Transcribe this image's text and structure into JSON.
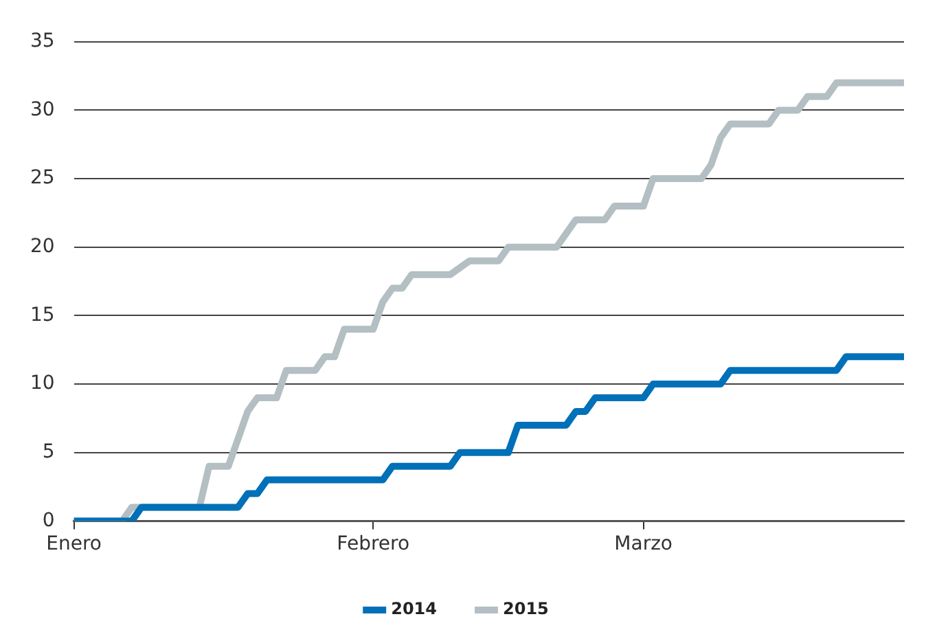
{
  "chart_data": {
    "type": "line",
    "xlim": [
      "--01-01",
      "--03-28"
    ],
    "xticks": [
      {
        "value": "--01-01",
        "label": "Enero"
      },
      {
        "value": "--02-01",
        "label": "Febrero"
      },
      {
        "value": "--03-01",
        "label": "Marzo"
      }
    ],
    "ylim": [
      0,
      35
    ],
    "yticks": [
      0,
      5,
      10,
      15,
      20,
      25,
      30,
      35
    ],
    "grid": "y",
    "legend": "bottom",
    "series": [
      {
        "name": "2014",
        "color": "#0070b8",
        "x": [
          "--01-01",
          "--01-07",
          "--01-08",
          "--01-18",
          "--01-19",
          "--01-20",
          "--01-21",
          "--02-02",
          "--02-03",
          "--02-09",
          "--02-10",
          "--02-15",
          "--02-16",
          "--02-21",
          "--02-22",
          "--02-23",
          "--02-24",
          "--03-01",
          "--03-02",
          "--03-09",
          "--03-10",
          "--03-21",
          "--03-22",
          "--03-28"
        ],
        "values": [
          0,
          0,
          1,
          1,
          2,
          2,
          3,
          3,
          4,
          4,
          5,
          5,
          7,
          7,
          8,
          8,
          9,
          9,
          10,
          10,
          11,
          11,
          12,
          12
        ]
      },
      {
        "name": "2015",
        "color": "#b3bfc2",
        "x": [
          "--01-01",
          "--01-06",
          "--01-07",
          "--01-14",
          "--01-15",
          "--01-17",
          "--01-18",
          "--01-19",
          "--01-20",
          "--01-22",
          "--01-23",
          "--01-26",
          "--01-27",
          "--01-28",
          "--01-29",
          "--02-01",
          "--02-02",
          "--02-03",
          "--02-04",
          "--02-05",
          "--02-09",
          "--02-11",
          "--02-14",
          "--02-15",
          "--02-20",
          "--02-22",
          "--02-25",
          "--02-26",
          "--03-01",
          "--03-02",
          "--03-07",
          "--03-08",
          "--03-09",
          "--03-10",
          "--03-14",
          "--03-15",
          "--03-17",
          "--03-18",
          "--03-20",
          "--03-21",
          "--03-28"
        ],
        "values": [
          0,
          0,
          1,
          1,
          4,
          4,
          6,
          8,
          9,
          9,
          11,
          11,
          12,
          12,
          14,
          14,
          16,
          17,
          17,
          18,
          18,
          19,
          19,
          20,
          20,
          22,
          22,
          23,
          23,
          25,
          25,
          26,
          28,
          29,
          29,
          30,
          30,
          31,
          31,
          32,
          32
        ]
      }
    ]
  }
}
